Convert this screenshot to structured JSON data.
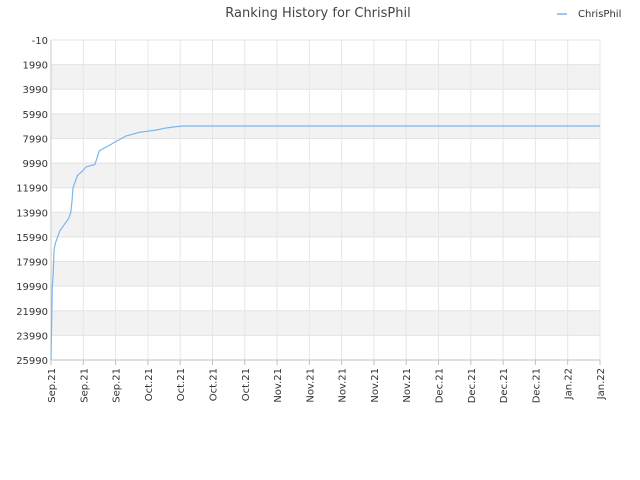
{
  "chart_data": {
    "type": "line",
    "title": "Ranking History for ChrisPhil",
    "xlabel": "",
    "ylabel": "",
    "y_inverted": true,
    "ylim": [
      -10,
      25990
    ],
    "y_ticks": [
      "-10",
      "1990",
      "3990",
      "5990",
      "7990",
      "9990",
      "11990",
      "13990",
      "15990",
      "17990",
      "19990",
      "21990",
      "23990",
      "25990"
    ],
    "x_ticks": [
      "Sep.21",
      "Sep.21",
      "Sep.21",
      "Oct.21",
      "Oct.21",
      "Oct.21",
      "Oct.21",
      "Nov.21",
      "Nov.21",
      "Nov.21",
      "Nov.21",
      "Nov.21",
      "Dec.21",
      "Dec.21",
      "Dec.21",
      "Dec.21",
      "Jan.22",
      "Jan.22"
    ],
    "grid": true,
    "alternating_bands": true,
    "legend_position": "top-right",
    "series": [
      {
        "name": "ChrisPhil",
        "color": "#7cb5ec",
        "x": [
          0,
          0.1,
          0.2,
          0.3,
          0.5,
          0.7,
          1,
          1.5,
          2,
          3,
          4,
          4.5,
          4.8,
          5,
          5.5,
          6,
          7,
          7.5,
          8,
          9,
          10,
          11,
          12,
          13,
          14,
          15,
          16,
          17,
          18,
          19,
          20,
          22,
          24,
          26,
          28,
          30,
          35,
          40,
          60,
          80,
          100,
          120,
          125
        ],
        "y": [
          25990,
          24000,
          22000,
          20000,
          19000,
          17000,
          16500,
          16000,
          15500,
          15000,
          14500,
          14000,
          13000,
          12000,
          11500,
          11000,
          10700,
          10500,
          10300,
          10200,
          10100,
          9000,
          8800,
          8600,
          8400,
          8200,
          8000,
          7800,
          7700,
          7600,
          7500,
          7400,
          7300,
          7150,
          7050,
          6980,
          6980,
          6980,
          6980,
          6980,
          6980,
          6980,
          6980
        ]
      }
    ]
  }
}
